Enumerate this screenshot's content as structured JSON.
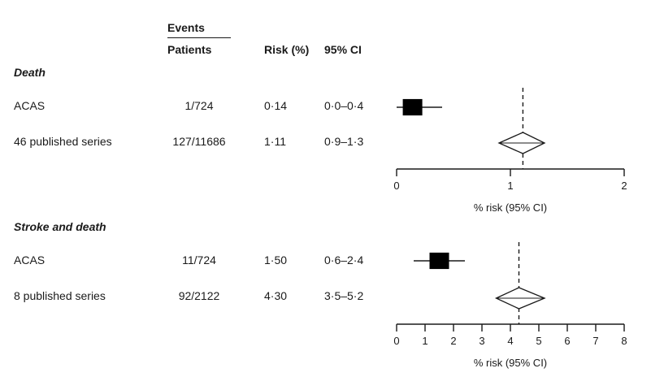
{
  "header": {
    "events": "Events",
    "patients": "Patients",
    "risk": "Risk (%)",
    "ci": "95% CI"
  },
  "sections": [
    {
      "title": "Death",
      "rows": [
        {
          "study": "ACAS",
          "events_patients": "1/724",
          "risk": "0·14",
          "ci": "0·0–0·4"
        },
        {
          "study": "46 published series",
          "events_patients": "127/11686",
          "risk": "1·11",
          "ci": "0·9–1·3"
        }
      ]
    },
    {
      "title": "Stroke and death",
      "rows": [
        {
          "study": "ACAS",
          "events_patients": "11/724",
          "risk": "1·50",
          "ci": "0·6–2·4"
        },
        {
          "study": "8 published series",
          "events_patients": "92/2122",
          "risk": "4·30",
          "ci": "3·5–5·2"
        }
      ]
    }
  ],
  "chart_data": [
    {
      "type": "forest",
      "panel": "Death",
      "xlabel": "% risk (95% CI)",
      "xlim": [
        0,
        2
      ],
      "ticks": [
        "0",
        "1",
        "2"
      ],
      "reference_line": 1.11,
      "points": [
        {
          "name": "ACAS",
          "estimate": 0.14,
          "ci_low": 0.0,
          "ci_high": 0.4,
          "marker": "square"
        },
        {
          "name": "46 published series",
          "estimate": 1.11,
          "ci_low": 0.9,
          "ci_high": 1.3,
          "marker": "diamond"
        }
      ]
    },
    {
      "type": "forest",
      "panel": "Stroke and death",
      "xlabel": "% risk (95% CI)",
      "xlim": [
        0,
        8
      ],
      "ticks": [
        "0",
        "1",
        "2",
        "3",
        "4",
        "5",
        "6",
        "7",
        "8"
      ],
      "reference_line": 4.3,
      "points": [
        {
          "name": "ACAS",
          "estimate": 1.5,
          "ci_low": 0.6,
          "ci_high": 2.4,
          "marker": "square"
        },
        {
          "name": "8 published series",
          "estimate": 4.3,
          "ci_low": 3.5,
          "ci_high": 5.2,
          "marker": "diamond"
        }
      ]
    }
  ]
}
